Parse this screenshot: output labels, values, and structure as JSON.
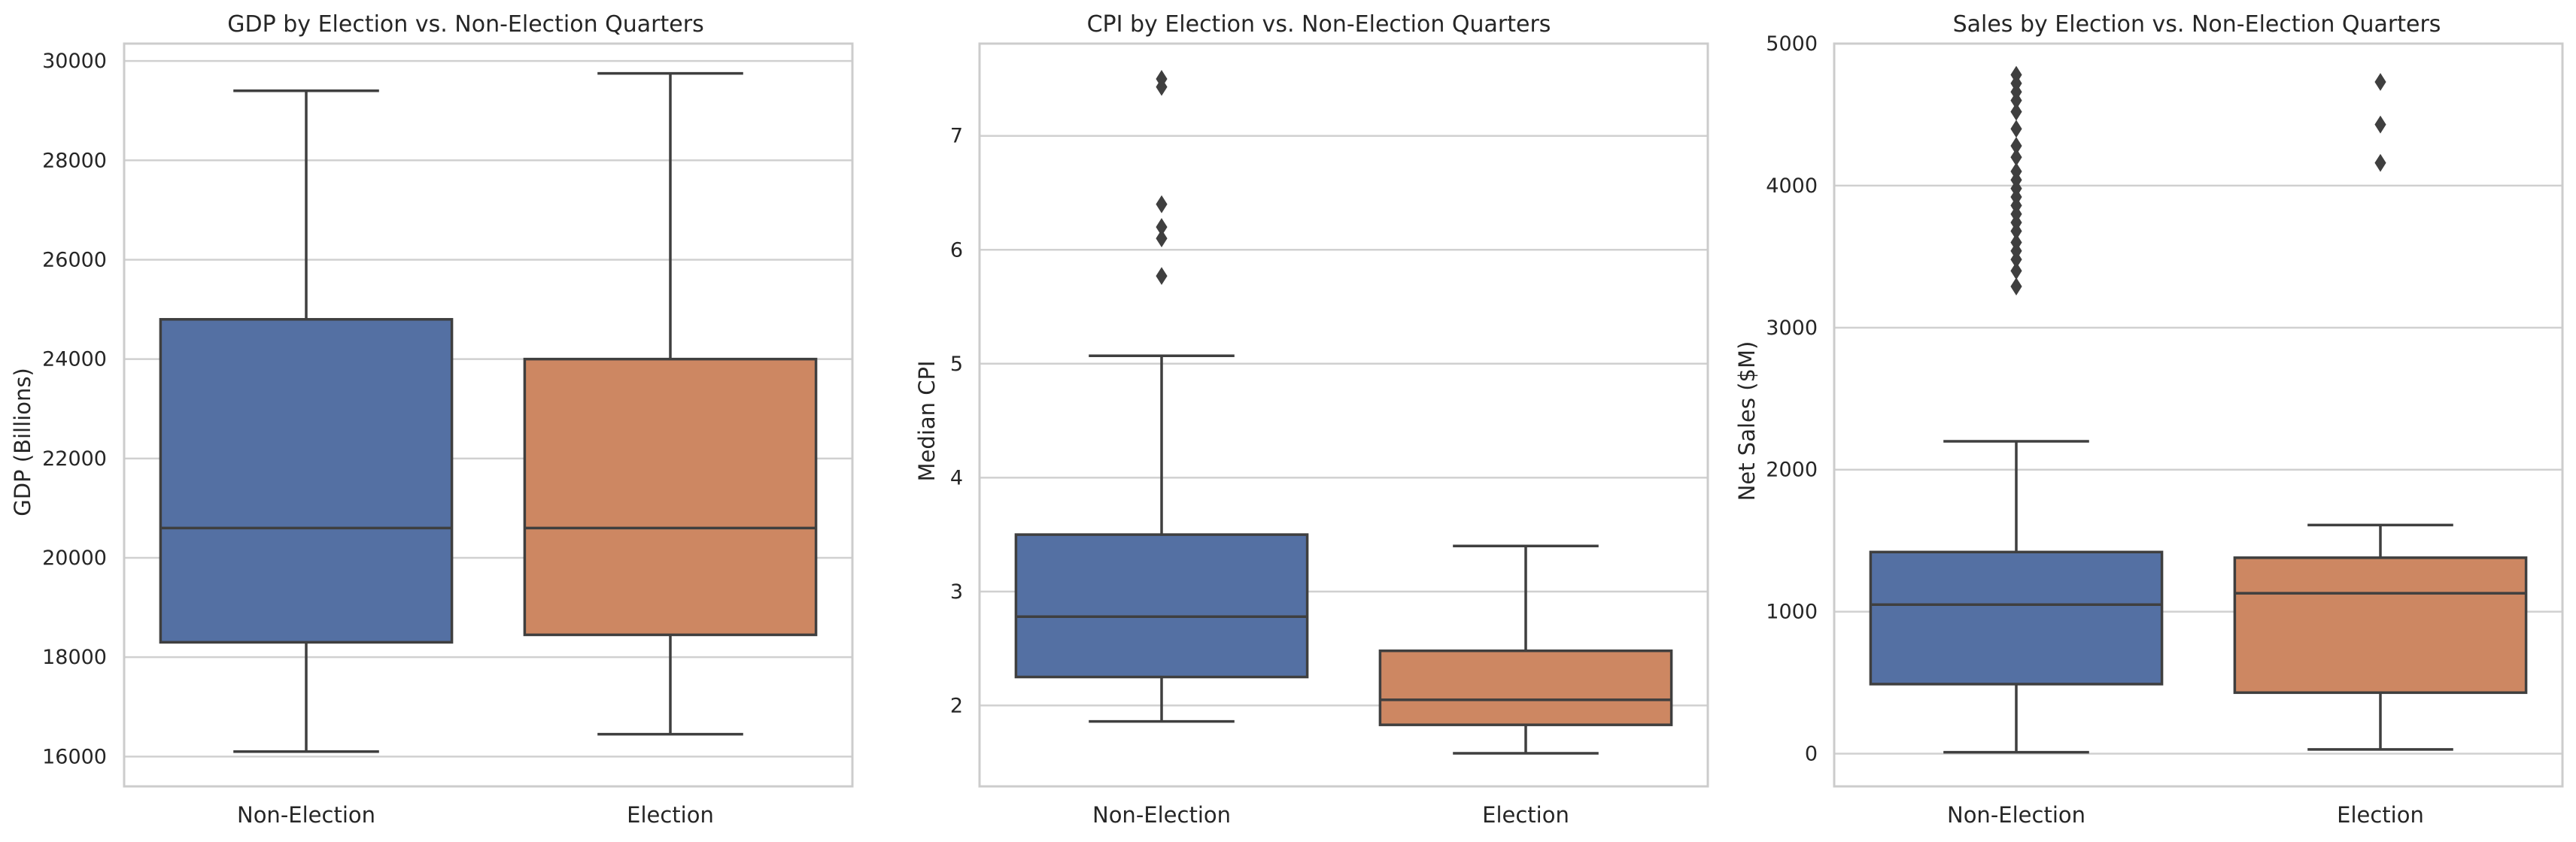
{
  "chart_data": [
    {
      "type": "box",
      "title": "GDP by Election vs. Non-Election Quarters",
      "xlabel": "",
      "ylabel": "GDP (Billions)",
      "ylim": [
        15400,
        30350
      ],
      "yticks": [
        16000,
        18000,
        20000,
        22000,
        24000,
        26000,
        28000,
        30000
      ],
      "grid": true,
      "categories": [
        "Non-Election",
        "Election"
      ],
      "series": [
        {
          "category": "Non-Election",
          "color": "#5470a3",
          "whisker_low": 16100,
          "q1": 18300,
          "median": 20600,
          "q3": 24800,
          "whisker_high": 29400,
          "outliers": []
        },
        {
          "category": "Election",
          "color": "#cd8762",
          "whisker_low": 16450,
          "q1": 18450,
          "median": 20600,
          "q3": 24000,
          "whisker_high": 29750,
          "outliers": []
        }
      ]
    },
    {
      "type": "box",
      "title": "CPI by Election vs. Non-Election Quarters",
      "xlabel": "",
      "ylabel": "Median CPI",
      "ylim": [
        1.29,
        7.81
      ],
      "yticks": [
        2,
        3,
        4,
        5,
        6,
        7
      ],
      "grid": true,
      "categories": [
        "Non-Election",
        "Election"
      ],
      "series": [
        {
          "category": "Non-Election",
          "color": "#5470a3",
          "whisker_low": 1.86,
          "q1": 2.25,
          "median": 2.78,
          "q3": 3.5,
          "whisker_high": 5.07,
          "outliers": [
            5.77,
            6.1,
            6.2,
            6.4,
            7.43,
            7.5
          ]
        },
        {
          "category": "Election",
          "color": "#cd8762",
          "whisker_low": 1.58,
          "q1": 1.83,
          "median": 2.05,
          "q3": 2.48,
          "whisker_high": 3.4,
          "outliers": []
        }
      ]
    },
    {
      "type": "box",
      "title": "Sales by Election vs. Non-Election Quarters",
      "xlabel": "",
      "ylabel": "Net Sales ($M)",
      "ylim": [
        -230,
        5000
      ],
      "yticks": [
        0,
        1000,
        2000,
        3000,
        4000,
        5000
      ],
      "grid": true,
      "categories": [
        "Non-Election",
        "Election"
      ],
      "series": [
        {
          "category": "Non-Election",
          "color": "#5470a3",
          "whisker_low": 10,
          "q1": 490,
          "median": 1050,
          "q3": 1420,
          "whisker_high": 2200,
          "outliers": [
            3290,
            3400,
            3480,
            3540,
            3600,
            3680,
            3740,
            3800,
            3860,
            3920,
            3980,
            4040,
            4100,
            4200,
            4280,
            4400,
            4520,
            4600,
            4660,
            4720,
            4780
          ]
        },
        {
          "category": "Election",
          "color": "#cd8762",
          "whisker_low": 30,
          "q1": 430,
          "median": 1130,
          "q3": 1380,
          "whisker_high": 1610,
          "outliers": [
            4160,
            4430,
            4730
          ]
        }
      ]
    }
  ]
}
